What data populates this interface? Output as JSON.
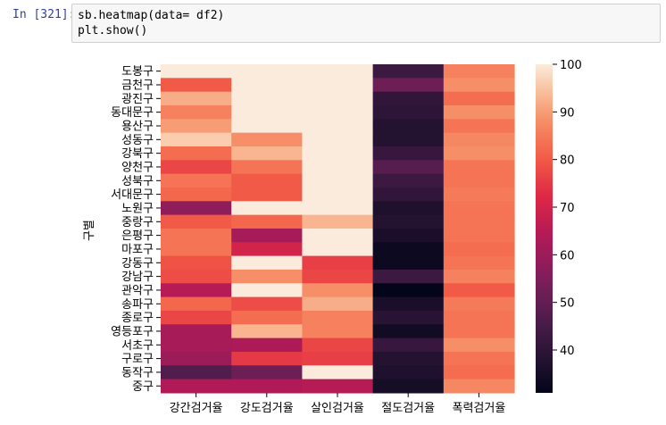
{
  "cell": {
    "prompt": "In [321]:",
    "code_line1": "sb.heatmap(data= df2)",
    "code_line2": "plt.show()"
  },
  "chart_data": {
    "type": "heatmap",
    "title": "",
    "xlabel": "",
    "ylabel": "구별",
    "columns": [
      "강간검거율",
      "강도검거율",
      "살인검거율",
      "절도검거율",
      "폭력검거율"
    ],
    "rows": [
      "도봉구",
      "금천구",
      "광진구",
      "동대문구",
      "용산구",
      "성동구",
      "강북구",
      "양천구",
      "성북구",
      "서대문구",
      "노원구",
      "중랑구",
      "은평구",
      "마포구",
      "강동구",
      "강남구",
      "관악구",
      "송파구",
      "종로구",
      "영등포구",
      "서초구",
      "구로구",
      "동작구",
      "중구"
    ],
    "values": [
      [
        100,
        100,
        100,
        43,
        86
      ],
      [
        80,
        100,
        100,
        52,
        88
      ],
      [
        92,
        100,
        100,
        41,
        83
      ],
      [
        86,
        100,
        100,
        40,
        88
      ],
      [
        90,
        100,
        100,
        38,
        84
      ],
      [
        96,
        88,
        100,
        38,
        87
      ],
      [
        83,
        93,
        100,
        42,
        88
      ],
      [
        77,
        84,
        100,
        48,
        84
      ],
      [
        84,
        80,
        100,
        43,
        84
      ],
      [
        82,
        80,
        100,
        41,
        85
      ],
      [
        58,
        100,
        100,
        37,
        84
      ],
      [
        80,
        82,
        93,
        38,
        84
      ],
      [
        84,
        62,
        100,
        36,
        84
      ],
      [
        84,
        70,
        100,
        33,
        83
      ],
      [
        79,
        100,
        76,
        33,
        84
      ],
      [
        78,
        88,
        77,
        43,
        86
      ],
      [
        65,
        100,
        88,
        31,
        80
      ],
      [
        82,
        78,
        92,
        36,
        85
      ],
      [
        77,
        83,
        86,
        39,
        84
      ],
      [
        62,
        93,
        86,
        34,
        84
      ],
      [
        62,
        63,
        77,
        42,
        88
      ],
      [
        60,
        75,
        76,
        38,
        84
      ],
      [
        47,
        52,
        100,
        37,
        83
      ],
      [
        64,
        64,
        65,
        35,
        87
      ]
    ],
    "colorbar": {
      "min": 31,
      "max": 100,
      "ticks": [
        40,
        50,
        60,
        70,
        80,
        90,
        100
      ],
      "colormap": "rocket"
    }
  }
}
